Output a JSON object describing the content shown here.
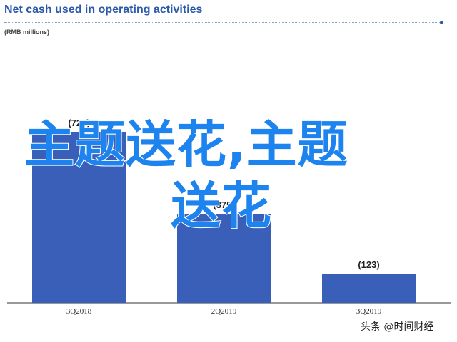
{
  "chart_data": {
    "type": "bar",
    "title": "Net cash used in operating activities",
    "subtitle": "(RMB millions)",
    "categories": [
      "3Q2018",
      "2Q2019",
      "3Q2019"
    ],
    "values": [
      -720,
      -375,
      -123
    ],
    "value_labels": [
      "(720)",
      "(375)",
      "(123)"
    ],
    "ylim": [
      -800,
      0
    ],
    "grid": false,
    "bar_color": "#3a5fb8"
  },
  "overlay": {
    "line1": "主题送花,主题",
    "line2": "送花"
  },
  "watermark": "头条 @时间财经"
}
